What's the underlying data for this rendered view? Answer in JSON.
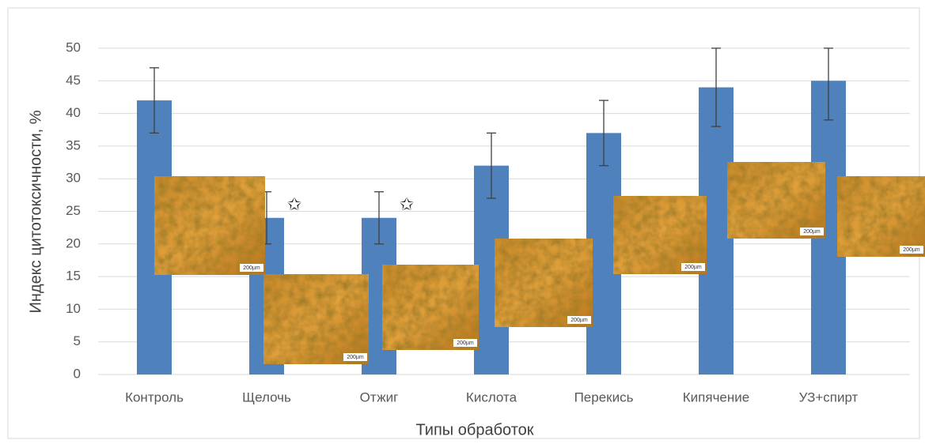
{
  "chart_data": {
    "type": "bar",
    "x_label": "Типы обработок",
    "y_label": "Индекс цитотоксичности, %",
    "categories": [
      "Контроль",
      "Щелочь",
      "Отжиг",
      "Кислота",
      "Перекись",
      "Кипячение",
      "УЗ+спирт"
    ],
    "values": [
      42,
      24,
      24,
      32,
      37,
      44,
      45
    ],
    "errors": [
      5,
      4,
      4,
      5,
      5,
      6,
      6
    ],
    "significance": [
      null,
      "✩",
      "✩",
      null,
      null,
      null,
      null
    ],
    "image_scale_labels": [
      "200µm",
      "200µm",
      "200µm",
      "200µm",
      "200µm",
      "200µm",
      "200µm"
    ],
    "color": "#4f81bd",
    "error_color": "#404040",
    "ylim": [
      0,
      50
    ],
    "yticks": [
      0,
      5,
      10,
      15,
      20,
      25,
      30,
      35,
      40,
      45,
      50
    ],
    "grid": true
  }
}
